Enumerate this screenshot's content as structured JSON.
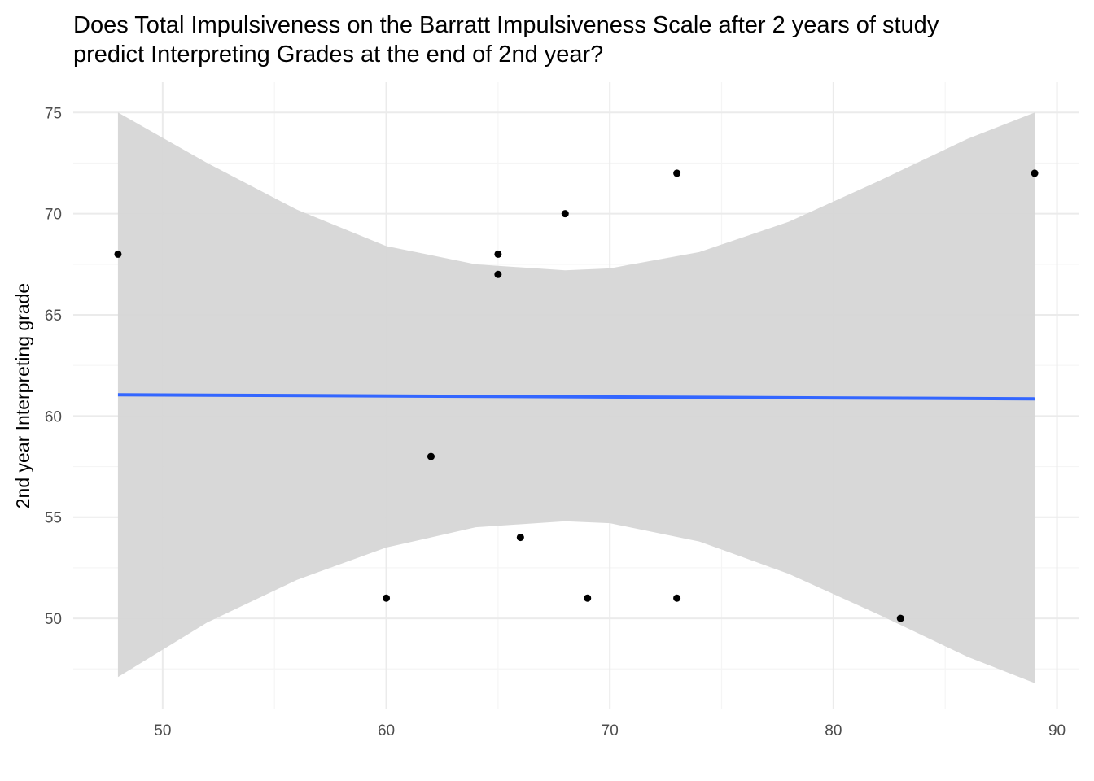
{
  "chart_data": {
    "type": "scatter",
    "title": [
      "Does Total Impulsiveness on the Barratt Impulsiveness Scale after 2 years of study",
      "predict Interpreting Grades at the end of 2nd year?"
    ],
    "xlabel": "",
    "ylabel": "2nd year Interpreting grade",
    "xlim": [
      46,
      91
    ],
    "ylim": [
      45.5,
      76.5
    ],
    "x_ticks": [
      50,
      60,
      70,
      80,
      90
    ],
    "y_ticks": [
      50,
      55,
      60,
      65,
      70,
      75
    ],
    "grid": true,
    "points": [
      {
        "x": 48,
        "y": 68
      },
      {
        "x": 60,
        "y": 51
      },
      {
        "x": 62,
        "y": 58
      },
      {
        "x": 65,
        "y": 68
      },
      {
        "x": 65,
        "y": 67
      },
      {
        "x": 66,
        "y": 54
      },
      {
        "x": 68,
        "y": 70
      },
      {
        "x": 69,
        "y": 51
      },
      {
        "x": 73,
        "y": 72
      },
      {
        "x": 73,
        "y": 51
      },
      {
        "x": 83,
        "y": 50
      },
      {
        "x": 89,
        "y": 72
      }
    ],
    "fit_line": {
      "x": [
        48,
        89
      ],
      "y": [
        61.05,
        60.85
      ]
    },
    "confidence_band": {
      "x": [
        48,
        52,
        56,
        60,
        64,
        68,
        70,
        74,
        78,
        82,
        86,
        89
      ],
      "upper": [
        75.0,
        72.5,
        70.2,
        68.4,
        67.5,
        67.2,
        67.3,
        68.1,
        69.6,
        71.6,
        73.7,
        75.0
      ],
      "lower": [
        47.1,
        49.8,
        51.9,
        53.5,
        54.5,
        54.8,
        54.7,
        53.8,
        52.2,
        50.2,
        48.1,
        46.8
      ]
    },
    "colors": {
      "point": "#000000",
      "fit_line": "#3366ff",
      "band": "#d6d6d6",
      "grid_major": "#ebebeb",
      "grid_minor": "#f5f5f5"
    }
  }
}
